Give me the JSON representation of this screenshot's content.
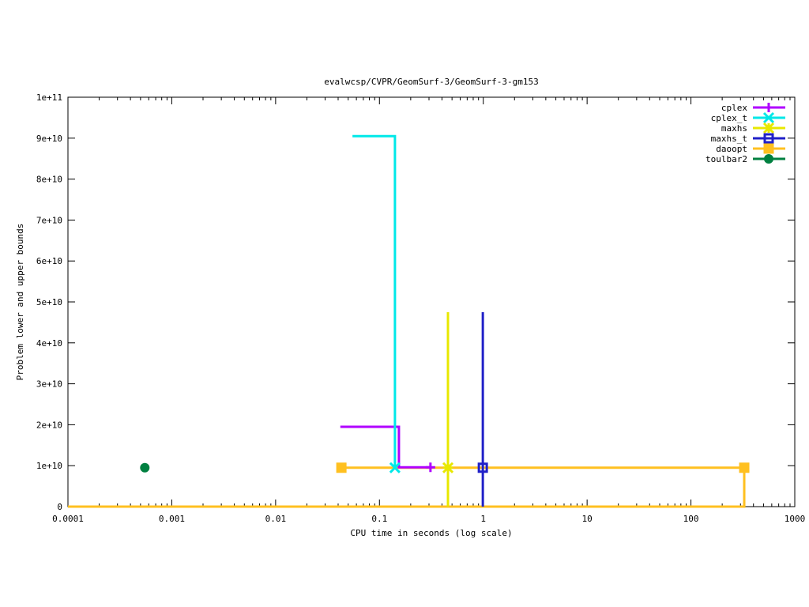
{
  "chart_data": {
    "type": "line",
    "title": "evalwcsp/CVPR/GeomSurf-3/GeomSurf-3-gm153",
    "xlabel": "CPU time in seconds (log scale)",
    "ylabel": "Problem lower and upper bounds",
    "xscale": "log",
    "xlim": [
      0.0001,
      1000
    ],
    "ylim": [
      0,
      100000000000.0
    ],
    "xticks": [
      {
        "v": 0.0001,
        "label": "0.0001"
      },
      {
        "v": 0.001,
        "label": "0.001"
      },
      {
        "v": 0.01,
        "label": "0.01"
      },
      {
        "v": 0.1,
        "label": "0.1"
      },
      {
        "v": 1,
        "label": "1"
      },
      {
        "v": 10,
        "label": "10"
      },
      {
        "v": 100,
        "label": "100"
      },
      {
        "v": 1000,
        "label": "1000"
      }
    ],
    "yticks": [
      {
        "v": 0,
        "label": "0"
      },
      {
        "v": 10000000000.0,
        "label": "1e+10"
      },
      {
        "v": 20000000000.0,
        "label": "2e+10"
      },
      {
        "v": 30000000000.0,
        "label": "3e+10"
      },
      {
        "v": 40000000000.0,
        "label": "4e+10"
      },
      {
        "v": 50000000000.0,
        "label": "5e+10"
      },
      {
        "v": 60000000000.0,
        "label": "6e+10"
      },
      {
        "v": 70000000000.0,
        "label": "7e+10"
      },
      {
        "v": 80000000000.0,
        "label": "8e+10"
      },
      {
        "v": 90000000000.0,
        "label": "9e+10"
      },
      {
        "v": 100000000000.0,
        "label": "1e+11"
      }
    ],
    "legend": "top-right",
    "series": [
      {
        "name": "cplex",
        "color": "#b000ff",
        "marker": "plus",
        "points": [
          [
            0.042,
            19500000000.0
          ],
          [
            0.154,
            19500000000.0
          ],
          [
            0.154,
            9600000000.0
          ],
          [
            0.31,
            9600000000.0
          ]
        ],
        "markers": [
          [
            0.31,
            9600000000.0
          ]
        ]
      },
      {
        "name": "cplex_t",
        "color": "#00e8e8",
        "marker": "x",
        "points": [
          [
            0.055,
            90500000000.0
          ],
          [
            0.141,
            90500000000.0
          ],
          [
            0.141,
            9500000000.0
          ]
        ],
        "markers": [
          [
            0.141,
            9500000000.0
          ]
        ]
      },
      {
        "name": "maxhs",
        "color": "#e8e800",
        "marker": "star",
        "points": [
          [
            0.457,
            47500000000.0
          ],
          [
            0.457,
            0
          ]
        ],
        "markers": [
          [
            0.457,
            9500000000.0
          ]
        ]
      },
      {
        "name": "maxhs_t",
        "color": "#2020c8",
        "marker": "square-open",
        "points": [
          [
            0.99,
            47500000000.0
          ],
          [
            0.99,
            0
          ]
        ],
        "markers": [
          [
            0.99,
            9500000000.0
          ]
        ]
      },
      {
        "name": "daoopt",
        "color": "#ffc020",
        "marker": "square-filled",
        "points": [
          [
            0.043,
            9500000000.0
          ],
          [
            326,
            9500000000.0
          ],
          [
            326,
            0
          ],
          [
            0.0001,
            0
          ]
        ],
        "markers": [
          [
            0.043,
            9500000000.0
          ],
          [
            326,
            9500000000.0
          ]
        ]
      },
      {
        "name": "toulbar2",
        "color": "#008040",
        "marker": "circle",
        "points": [],
        "markers": [
          [
            0.00055,
            9500000000.0
          ]
        ]
      }
    ]
  }
}
